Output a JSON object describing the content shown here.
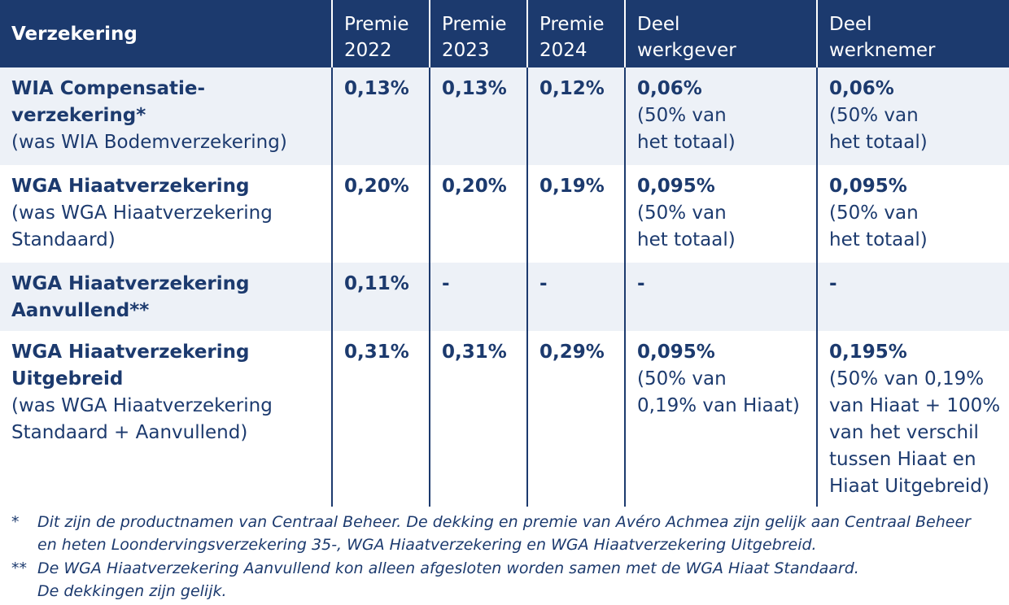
{
  "header": {
    "col0": "Verzekering",
    "col1": [
      "Premie",
      "2022"
    ],
    "col2": [
      "Premie",
      "2023"
    ],
    "col3": [
      "Premie",
      "2024"
    ],
    "col4": [
      "Deel",
      "werkgever"
    ],
    "col5": [
      "Deel",
      "werknemer"
    ]
  },
  "rows": [
    {
      "name": [
        "WIA Compensatie-",
        "verzekering*"
      ],
      "sub": [
        "(was WIA Bodemverzekering)"
      ],
      "p2022": "0,13%",
      "p2023": "0,13%",
      "p2024": "0,12%",
      "werkgever": "0,06%",
      "werkgever_note": [
        "(50% van",
        "het totaal)"
      ],
      "werknemer": "0,06%",
      "werknemer_note": [
        "(50% van",
        "het totaal)"
      ]
    },
    {
      "name": [
        "WGA Hiaatverzekering"
      ],
      "sub": [
        "(was WGA Hiaatverzekering",
        "Standaard)"
      ],
      "p2022": "0,20%",
      "p2023": "0,20%",
      "p2024": "0,19%",
      "werkgever": "0,095%",
      "werkgever_note": [
        "(50% van",
        "het totaal)"
      ],
      "werknemer": "0,095%",
      "werknemer_note": [
        "(50% van",
        "het totaal)"
      ]
    },
    {
      "name": [
        "WGA Hiaatverzekering",
        "Aanvullend**"
      ],
      "sub": [],
      "p2022": "0,11%",
      "p2023": "-",
      "p2024": "-",
      "werkgever": "-",
      "werkgever_note": [],
      "werknemer": "-",
      "werknemer_note": []
    },
    {
      "name": [
        "WGA Hiaatverzekering",
        "Uitgebreid"
      ],
      "sub": [
        "(was WGA Hiaatverzekering",
        "Standaard + Aanvullend)"
      ],
      "p2022": "0,31%",
      "p2023": "0,31%",
      "p2024": "0,29%",
      "werkgever": "0,095%",
      "werkgever_note": [
        "(50% van",
        "0,19% van Hiaat)"
      ],
      "werknemer": "0,195%",
      "werknemer_note": [
        "(50% van 0,19%",
        "van Hiaat + 100%",
        "van het verschil",
        "tussen Hiaat en",
        "Hiaat Uitgebreid)"
      ]
    }
  ],
  "footnotes": [
    {
      "mark": "*",
      "lines": [
        "Dit zijn de productnamen van Centraal Beheer. De dekking en premie van Avéro Achmea zijn gelijk aan Centraal Beheer",
        "en heten Loondervingsverzekering 35-, WGA Hiaatverzekering en WGA Hiaatverzekering Uitgebreid."
      ]
    },
    {
      "mark": "**",
      "lines": [
        "De WGA Hiaatverzekering Aanvullend kon alleen afgesloten worden samen met de WGA Hiaat Standaard.",
        "De dekkingen zijn gelijk."
      ]
    }
  ],
  "colors": {
    "header_bg": "#1c3a6e",
    "text": "#1c3a6e",
    "row_shade": "#edf1f7"
  }
}
